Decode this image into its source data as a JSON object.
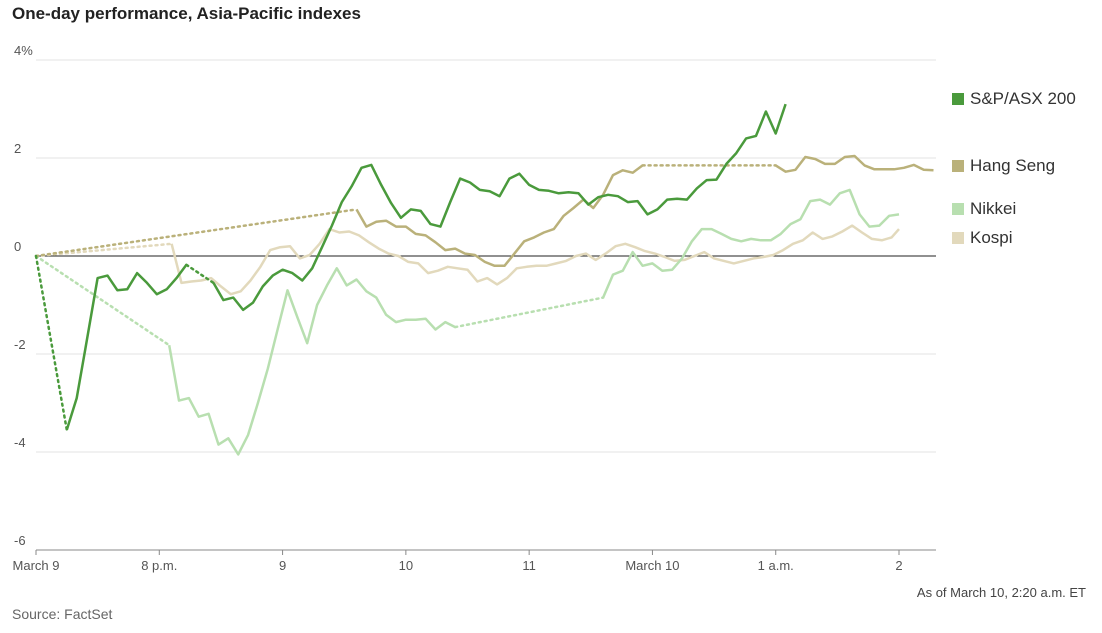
{
  "chart_data": {
    "type": "line",
    "title": "One-day performance, Asia-Pacific indexes",
    "source": "Source: FactSet",
    "as_of": "As of March 10, 2:20 a.m. ET",
    "ylim": [
      -6,
      4
    ],
    "y_ticks": [
      4,
      2,
      0,
      -2,
      -4,
      -6
    ],
    "y_tick_labels": [
      "4%",
      "2",
      "0",
      "-2",
      "-4",
      "-6"
    ],
    "xlim": [
      0,
      7.3
    ],
    "x_ticks": [
      0,
      1,
      2,
      3,
      4,
      5,
      6,
      7
    ],
    "x_tick_labels": [
      "March 9",
      "8 p.m.",
      "9",
      "10",
      "11",
      "March 10",
      "1 a.m.",
      "2"
    ],
    "grid": true,
    "series": [
      {
        "name": "S&P/ASX 200",
        "color": "#4a9a3c",
        "gap": [
          [
            0,
            0
          ],
          [
            0.25,
            -3.55
          ]
        ],
        "values": [
          [
            0.25,
            -3.55
          ],
          [
            0.33,
            -2.9
          ],
          [
            0.4,
            -1.9
          ],
          [
            0.5,
            -0.45
          ],
          [
            0.58,
            -0.4
          ],
          [
            0.66,
            -0.7
          ],
          [
            0.74,
            -0.68
          ],
          [
            0.82,
            -0.35
          ],
          [
            0.9,
            -0.55
          ],
          [
            0.98,
            -0.78
          ],
          [
            1.06,
            -0.68
          ],
          [
            1.14,
            -0.45
          ],
          [
            1.22,
            -0.18
          ]
        ],
        "gap2": [
          [
            1.22,
            -0.18
          ],
          [
            1.44,
            -0.55
          ]
        ],
        "values2": [
          [
            1.44,
            -0.55
          ],
          [
            1.52,
            -0.9
          ],
          [
            1.6,
            -0.85
          ],
          [
            1.68,
            -1.1
          ],
          [
            1.76,
            -0.95
          ],
          [
            1.84,
            -0.62
          ],
          [
            1.92,
            -0.4
          ],
          [
            2.0,
            -0.28
          ],
          [
            2.08,
            -0.35
          ],
          [
            2.16,
            -0.5
          ],
          [
            2.24,
            -0.25
          ],
          [
            2.32,
            0.18
          ],
          [
            2.4,
            0.62
          ],
          [
            2.48,
            1.1
          ],
          [
            2.56,
            1.42
          ],
          [
            2.64,
            1.8
          ],
          [
            2.72,
            1.86
          ],
          [
            2.8,
            1.45
          ],
          [
            2.88,
            1.08
          ],
          [
            2.96,
            0.78
          ],
          [
            3.04,
            0.95
          ],
          [
            3.12,
            0.92
          ],
          [
            3.2,
            0.65
          ],
          [
            3.28,
            0.6
          ],
          [
            3.36,
            1.1
          ],
          [
            3.44,
            1.58
          ],
          [
            3.52,
            1.5
          ],
          [
            3.6,
            1.35
          ],
          [
            3.68,
            1.32
          ],
          [
            3.76,
            1.22
          ],
          [
            3.84,
            1.58
          ],
          [
            3.92,
            1.68
          ],
          [
            4.0,
            1.45
          ],
          [
            4.08,
            1.35
          ],
          [
            4.16,
            1.33
          ],
          [
            4.24,
            1.28
          ],
          [
            4.32,
            1.3
          ],
          [
            4.4,
            1.28
          ],
          [
            4.48,
            1.05
          ],
          [
            4.56,
            1.2
          ],
          [
            4.64,
            1.25
          ],
          [
            4.72,
            1.22
          ],
          [
            4.8,
            1.1
          ],
          [
            4.88,
            1.12
          ],
          [
            4.96,
            0.85
          ],
          [
            5.04,
            0.95
          ],
          [
            5.12,
            1.15
          ],
          [
            5.2,
            1.17
          ],
          [
            5.28,
            1.15
          ],
          [
            5.36,
            1.38
          ],
          [
            5.44,
            1.55
          ],
          [
            5.52,
            1.56
          ],
          [
            5.6,
            1.88
          ],
          [
            5.68,
            2.1
          ],
          [
            5.76,
            2.4
          ],
          [
            5.84,
            2.45
          ],
          [
            5.92,
            2.95
          ],
          [
            6.0,
            2.5
          ],
          [
            6.08,
            3.1
          ]
        ]
      },
      {
        "name": "Hang Seng",
        "color": "#bab17a",
        "gap": [
          [
            0,
            0
          ],
          [
            2.6,
            0.95
          ]
        ],
        "values": [
          [
            2.6,
            0.95
          ],
          [
            2.68,
            0.6
          ],
          [
            2.76,
            0.7
          ],
          [
            2.84,
            0.72
          ],
          [
            2.92,
            0.6
          ],
          [
            3.0,
            0.6
          ],
          [
            3.08,
            0.45
          ],
          [
            3.16,
            0.42
          ],
          [
            3.24,
            0.28
          ],
          [
            3.32,
            0.12
          ],
          [
            3.4,
            0.15
          ],
          [
            3.48,
            0.05
          ],
          [
            3.56,
            0.02
          ],
          [
            3.64,
            -0.12
          ],
          [
            3.72,
            -0.2
          ],
          [
            3.8,
            -0.2
          ],
          [
            3.88,
            0.05
          ],
          [
            3.96,
            0.3
          ],
          [
            4.04,
            0.38
          ],
          [
            4.12,
            0.48
          ],
          [
            4.2,
            0.55
          ],
          [
            4.28,
            0.82
          ],
          [
            4.36,
            0.98
          ],
          [
            4.44,
            1.15
          ],
          [
            4.52,
            0.98
          ],
          [
            4.6,
            1.25
          ],
          [
            4.68,
            1.65
          ],
          [
            4.76,
            1.75
          ],
          [
            4.84,
            1.7
          ],
          [
            4.92,
            1.85
          ]
        ],
        "gap2": [
          [
            4.92,
            1.85
          ],
          [
            6.0,
            1.85
          ]
        ],
        "values2": [
          [
            6.0,
            1.85
          ],
          [
            6.08,
            1.72
          ],
          [
            6.16,
            1.76
          ],
          [
            6.24,
            2.02
          ],
          [
            6.32,
            1.98
          ],
          [
            6.4,
            1.88
          ],
          [
            6.48,
            1.88
          ],
          [
            6.56,
            2.02
          ],
          [
            6.64,
            2.04
          ],
          [
            6.72,
            1.85
          ],
          [
            6.8,
            1.77
          ],
          [
            6.88,
            1.77
          ],
          [
            6.96,
            1.77
          ],
          [
            7.04,
            1.8
          ],
          [
            7.12,
            1.86
          ],
          [
            7.2,
            1.76
          ],
          [
            7.28,
            1.75
          ]
        ]
      },
      {
        "name": "Nikkei",
        "color": "#b8dfb0",
        "gap": [
          [
            0,
            0
          ],
          [
            1.08,
            -1.82
          ]
        ],
        "values": [
          [
            1.08,
            -1.82
          ],
          [
            1.16,
            -2.95
          ],
          [
            1.24,
            -2.9
          ],
          [
            1.32,
            -3.28
          ],
          [
            1.4,
            -3.22
          ],
          [
            1.48,
            -3.85
          ],
          [
            1.56,
            -3.72
          ],
          [
            1.64,
            -4.05
          ],
          [
            1.72,
            -3.65
          ],
          [
            1.8,
            -3.0
          ],
          [
            1.88,
            -2.3
          ],
          [
            1.96,
            -1.5
          ],
          [
            2.04,
            -0.7
          ],
          [
            2.12,
            -1.25
          ],
          [
            2.2,
            -1.78
          ],
          [
            2.28,
            -1.0
          ],
          [
            2.36,
            -0.6
          ],
          [
            2.44,
            -0.25
          ],
          [
            2.52,
            -0.6
          ],
          [
            2.6,
            -0.48
          ],
          [
            2.68,
            -0.72
          ],
          [
            2.76,
            -0.85
          ],
          [
            2.84,
            -1.2
          ],
          [
            2.92,
            -1.35
          ],
          [
            3.0,
            -1.3
          ],
          [
            3.08,
            -1.3
          ],
          [
            3.16,
            -1.28
          ],
          [
            3.24,
            -1.5
          ],
          [
            3.32,
            -1.35
          ],
          [
            3.4,
            -1.45
          ]
        ],
        "gap2": [
          [
            3.4,
            -1.45
          ],
          [
            4.6,
            -0.85
          ]
        ],
        "values2": [
          [
            4.6,
            -0.85
          ],
          [
            4.68,
            -0.38
          ],
          [
            4.76,
            -0.3
          ],
          [
            4.84,
            0.08
          ],
          [
            4.92,
            -0.2
          ],
          [
            5.0,
            -0.15
          ],
          [
            5.08,
            -0.3
          ],
          [
            5.16,
            -0.28
          ],
          [
            5.24,
            -0.05
          ],
          [
            5.32,
            0.3
          ],
          [
            5.4,
            0.55
          ],
          [
            5.48,
            0.55
          ],
          [
            5.56,
            0.45
          ],
          [
            5.64,
            0.35
          ],
          [
            5.72,
            0.3
          ],
          [
            5.8,
            0.35
          ],
          [
            5.88,
            0.32
          ],
          [
            5.96,
            0.32
          ],
          [
            6.04,
            0.45
          ],
          [
            6.12,
            0.65
          ],
          [
            6.2,
            0.75
          ],
          [
            6.28,
            1.12
          ],
          [
            6.36,
            1.15
          ],
          [
            6.44,
            1.05
          ],
          [
            6.52,
            1.28
          ],
          [
            6.6,
            1.35
          ],
          [
            6.68,
            0.85
          ],
          [
            6.76,
            0.6
          ],
          [
            6.84,
            0.62
          ],
          [
            6.92,
            0.82
          ],
          [
            7.0,
            0.85
          ]
        ]
      },
      {
        "name": "Kospi",
        "color": "#e2d9bc",
        "gap": [
          [
            0,
            0
          ],
          [
            1.1,
            0.25
          ]
        ],
        "values": [
          [
            1.1,
            0.25
          ],
          [
            1.18,
            -0.55
          ],
          [
            1.26,
            -0.52
          ],
          [
            1.34,
            -0.5
          ],
          [
            1.42,
            -0.45
          ],
          [
            1.5,
            -0.62
          ],
          [
            1.58,
            -0.78
          ],
          [
            1.66,
            -0.72
          ],
          [
            1.74,
            -0.5
          ],
          [
            1.82,
            -0.22
          ],
          [
            1.9,
            0.12
          ],
          [
            1.98,
            0.18
          ],
          [
            2.06,
            0.2
          ],
          [
            2.14,
            -0.05
          ],
          [
            2.22,
            0.02
          ],
          [
            2.3,
            0.25
          ],
          [
            2.38,
            0.55
          ],
          [
            2.46,
            0.48
          ],
          [
            2.54,
            0.5
          ],
          [
            2.62,
            0.42
          ],
          [
            2.7,
            0.28
          ],
          [
            2.78,
            0.15
          ],
          [
            2.86,
            0.05
          ],
          [
            2.94,
            0.0
          ],
          [
            3.02,
            -0.12
          ],
          [
            3.1,
            -0.15
          ],
          [
            3.18,
            -0.35
          ],
          [
            3.26,
            -0.3
          ],
          [
            3.34,
            -0.22
          ],
          [
            3.42,
            -0.25
          ],
          [
            3.5,
            -0.28
          ],
          [
            3.58,
            -0.52
          ],
          [
            3.66,
            -0.45
          ],
          [
            3.74,
            -0.58
          ],
          [
            3.82,
            -0.45
          ],
          [
            3.9,
            -0.25
          ],
          [
            3.98,
            -0.22
          ],
          [
            4.06,
            -0.2
          ],
          [
            4.14,
            -0.2
          ],
          [
            4.22,
            -0.15
          ],
          [
            4.3,
            -0.1
          ],
          [
            4.38,
            0.0
          ],
          [
            4.46,
            0.05
          ],
          [
            4.54,
            -0.08
          ],
          [
            4.62,
            0.05
          ],
          [
            4.7,
            0.2
          ],
          [
            4.78,
            0.25
          ],
          [
            4.86,
            0.18
          ],
          [
            4.94,
            0.1
          ],
          [
            5.02,
            0.05
          ],
          [
            5.1,
            -0.02
          ],
          [
            5.18,
            -0.1
          ],
          [
            5.26,
            -0.08
          ],
          [
            5.34,
            0.0
          ],
          [
            5.42,
            0.08
          ],
          [
            5.5,
            -0.05
          ],
          [
            5.58,
            -0.1
          ],
          [
            5.66,
            -0.15
          ],
          [
            5.74,
            -0.1
          ],
          [
            5.82,
            -0.05
          ],
          [
            5.9,
            -0.02
          ],
          [
            5.98,
            0.02
          ],
          [
            6.06,
            0.12
          ],
          [
            6.14,
            0.25
          ],
          [
            6.22,
            0.32
          ],
          [
            6.3,
            0.48
          ],
          [
            6.38,
            0.35
          ],
          [
            6.46,
            0.4
          ],
          [
            6.54,
            0.5
          ],
          [
            6.62,
            0.62
          ],
          [
            6.7,
            0.48
          ],
          [
            6.78,
            0.35
          ],
          [
            6.86,
            0.32
          ],
          [
            6.94,
            0.38
          ],
          [
            7.0,
            0.55
          ]
        ]
      }
    ]
  }
}
